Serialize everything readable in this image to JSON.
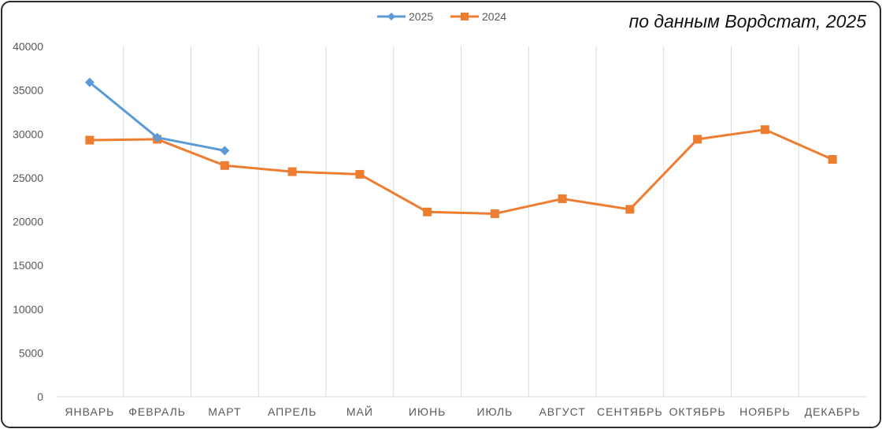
{
  "source_note": "по данным Вордстат, 2025",
  "chart_data": {
    "type": "line",
    "categories": [
      "ЯНВАРЬ",
      "ФЕВРАЛЬ",
      "МАРТ",
      "АПРЕЛЬ",
      "МАЙ",
      "ИЮНЬ",
      "ИЮЛЬ",
      "АВГУСТ",
      "СЕНТЯБРЬ",
      "ОКТЯБРЬ",
      "НОЯБРЬ",
      "ДЕКАБРЬ"
    ],
    "series": [
      {
        "name": "2025",
        "color": "#5b9bd5",
        "marker": "diamond",
        "values": [
          35900,
          29600,
          28100,
          null,
          null,
          null,
          null,
          null,
          null,
          null,
          null,
          null
        ]
      },
      {
        "name": "2024",
        "color": "#ed7d31",
        "marker": "square",
        "values": [
          29300,
          29400,
          26400,
          25700,
          25400,
          21100,
          20900,
          22600,
          21400,
          29400,
          30500,
          27100
        ]
      }
    ],
    "ylim": [
      0,
      40000
    ],
    "yticks": [
      "0",
      "5000",
      "10000",
      "15000",
      "20000",
      "25000",
      "30000",
      "35000",
      "40000"
    ],
    "grid": "vertical category lines",
    "legend_position": "top-center",
    "title": "",
    "xlabel": "",
    "ylabel": ""
  }
}
